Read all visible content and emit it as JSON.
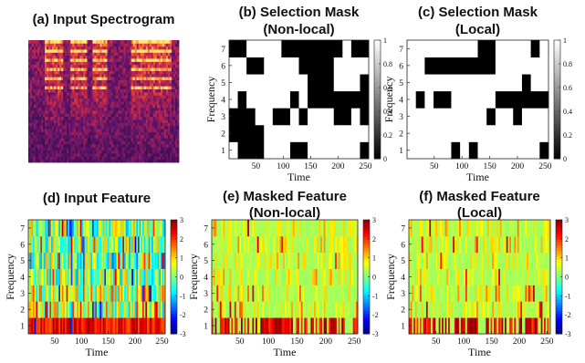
{
  "chart_data": [
    {
      "id": "a",
      "type": "heatmap",
      "title": "(a) Input Spectrogram",
      "kind": "spectrogram",
      "xlabel": "",
      "ylabel": "",
      "colormap": "hot"
    },
    {
      "id": "b",
      "type": "heatmap",
      "title_lines": [
        "(b) Selection Mask",
        "(Non-local)"
      ],
      "xlabel": "Time",
      "ylabel": "Frequency",
      "xticks": [
        50,
        100,
        150,
        200,
        250
      ],
      "yticks": [
        1,
        2,
        3,
        4,
        5,
        6,
        7
      ],
      "xlim": [
        1,
        256
      ],
      "ylim": [
        0.5,
        7.5
      ],
      "colormap": "gray",
      "clim": [
        0,
        1
      ],
      "colorbar_ticks": [
        0,
        0.2,
        0.4,
        0.6,
        0.8,
        1
      ],
      "colorbar_labels": [
        "0",
        "0.2",
        "0.4",
        "0.6",
        "0.8",
        "1"
      ],
      "rows_seed": 11,
      "density": 0.5
    },
    {
      "id": "c",
      "type": "heatmap",
      "title_lines": [
        "(c) Selection Mask",
        "(Local)"
      ],
      "xlabel": "Time",
      "ylabel": "Frequency",
      "xticks": [
        50,
        100,
        150,
        200,
        250
      ],
      "yticks": [
        1,
        2,
        3,
        4,
        5,
        6,
        7
      ],
      "xlim": [
        1,
        256
      ],
      "ylim": [
        0.5,
        7.5
      ],
      "colormap": "gray",
      "clim": [
        0,
        1
      ],
      "colorbar_ticks": [
        0,
        0.2,
        0.4,
        0.6,
        0.8,
        1
      ],
      "colorbar_labels": [
        "0",
        "0.2",
        "0.4",
        "0.6",
        "0.8",
        "1"
      ],
      "rows_seed": 23,
      "density": 0.72
    },
    {
      "id": "d",
      "type": "heatmap",
      "title": "(d) Input Feature",
      "xlabel": "Time",
      "ylabel": "Frequency",
      "xticks": [
        50,
        100,
        150,
        200,
        250
      ],
      "yticks": [
        1,
        2,
        3,
        4,
        5,
        6,
        7
      ],
      "xlim": [
        1,
        256
      ],
      "ylim": [
        0.5,
        7.5
      ],
      "colormap": "jet",
      "clim": [
        -3,
        3
      ],
      "colorbar_ticks": [
        -3,
        -2,
        -1,
        0,
        1,
        2,
        3
      ],
      "colorbar_labels": [
        "-3",
        "-2",
        "-1",
        "0",
        "1",
        "2",
        "3"
      ],
      "masked": false
    },
    {
      "id": "e",
      "type": "heatmap",
      "title_lines": [
        "(e) Masked Feature",
        "(Non-local)"
      ],
      "xlabel": "Time",
      "ylabel": "Frequency",
      "xticks": [
        50,
        100,
        150,
        200,
        250
      ],
      "yticks": [
        1,
        2,
        3,
        4,
        5,
        6,
        7
      ],
      "xlim": [
        1,
        256
      ],
      "ylim": [
        0.5,
        7.5
      ],
      "colormap": "jet",
      "clim": [
        -3,
        3
      ],
      "colorbar_ticks": [
        -3,
        -2,
        -1,
        0,
        1,
        2,
        3
      ],
      "colorbar_labels": [
        "-3",
        "-2",
        "-1",
        "0",
        "1",
        "2",
        "3"
      ],
      "masked": true
    },
    {
      "id": "f",
      "type": "heatmap",
      "title_lines": [
        "(f) Masked Feature",
        "(Local)"
      ],
      "xlabel": "Time",
      "ylabel": "Frequency",
      "xticks": [
        50,
        100,
        150,
        200,
        250
      ],
      "yticks": [
        1,
        2,
        3,
        4,
        5,
        6,
        7
      ],
      "xlim": [
        1,
        256
      ],
      "ylim": [
        0.5,
        7.5
      ],
      "colormap": "jet",
      "clim": [
        -3,
        3
      ],
      "colorbar_ticks": [
        -3,
        -2,
        -1,
        0,
        1,
        2,
        3
      ],
      "colorbar_labels": [
        "-3",
        "-2",
        "-1",
        "0",
        "1",
        "2",
        "3"
      ],
      "masked": true
    }
  ]
}
